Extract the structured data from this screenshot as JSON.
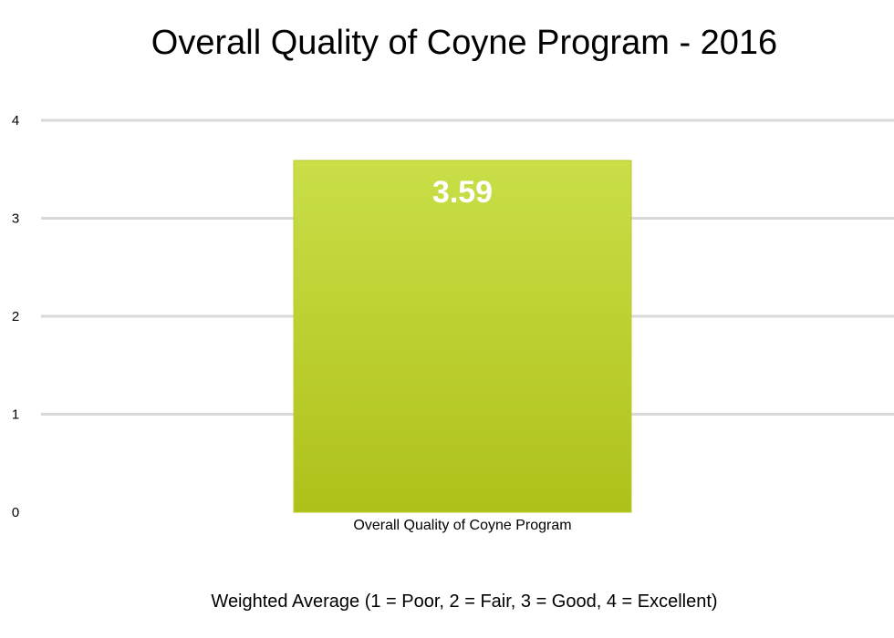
{
  "chart_data": {
    "type": "bar",
    "title": "Overall Quality of Coyne Program - 2016",
    "categories": [
      "Overall Quality of Coyne Program"
    ],
    "values": [
      3.59
    ],
    "data_labels": [
      "3.59"
    ],
    "xlabel": "Weighted Average (1 = Poor, 2 = Fair, 3 = Good, 4 = Excellent)",
    "ylabel": "",
    "ylim": [
      0,
      4
    ],
    "yticks": [
      "0",
      "1",
      "2",
      "3",
      "4"
    ],
    "grid": true,
    "legend": "none",
    "colors": {
      "bar_top": "#CADE48",
      "bar_bottom": "#AEC11A",
      "bar_edge": "#B9CC2A",
      "data_label": "#FFFFFF",
      "gridline": "#D9D9D9"
    }
  }
}
